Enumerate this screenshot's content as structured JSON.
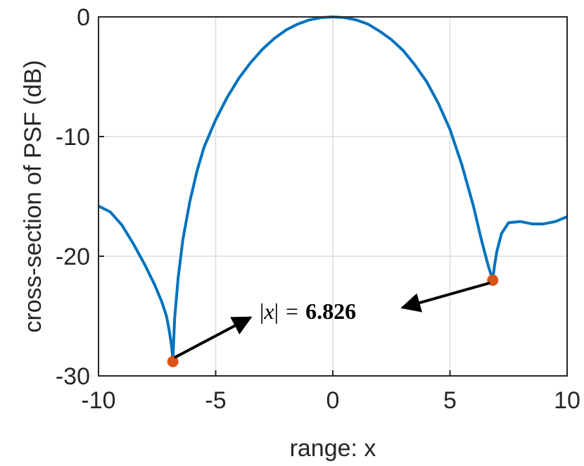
{
  "chart_data": {
    "type": "line",
    "title": "",
    "xlabel": "range: x",
    "ylabel": "cross-section of PSF (dB)",
    "xlim": [
      -10,
      10
    ],
    "ylim": [
      -30,
      0
    ],
    "grid": true,
    "x_ticks": [
      -10,
      -5,
      0,
      5,
      10
    ],
    "x_tick_labels": [
      "-10",
      "-5",
      "0",
      "5",
      "10"
    ],
    "y_ticks": [
      0,
      -10,
      -20,
      -30
    ],
    "y_tick_labels": [
      "0",
      "-10",
      "-20",
      "-30"
    ],
    "colors": {
      "line": "#0072BD",
      "marker": "#D95319",
      "arrow": "#000000",
      "grid": "#dcdcdc",
      "axis": "#262626"
    },
    "series": [
      {
        "x": [
          -10,
          -9.5,
          -9,
          -8.5,
          -8,
          -7.6,
          -7.3,
          -7.1,
          -7.0,
          -6.9,
          -6.85,
          -6.826,
          -6.8,
          -6.75,
          -6.6,
          -6.4,
          -6.1,
          -5.8,
          -5.5,
          -5,
          -4.5,
          -4,
          -3.5,
          -3,
          -2.5,
          -2,
          -1.5,
          -1,
          -0.5,
          0,
          0.5,
          1,
          1.5,
          2,
          2.5,
          3,
          3.5,
          4,
          4.5,
          5,
          5.5,
          6,
          6.3,
          6.5,
          6.65,
          6.75,
          6.8,
          6.826,
          6.85,
          6.9,
          7.0,
          7.2,
          7.5,
          8.0,
          8.5,
          9.0,
          9.5,
          10
        ],
        "y": [
          -15.8,
          -16.3,
          -17.4,
          -19.0,
          -20.8,
          -22.4,
          -23.8,
          -25.0,
          -26.0,
          -27.2,
          -28.1,
          -28.8,
          -27.4,
          -25.2,
          -21.8,
          -18.6,
          -15.4,
          -12.9,
          -10.9,
          -8.6,
          -6.7,
          -5.1,
          -3.8,
          -2.7,
          -1.8,
          -1.1,
          -0.6,
          -0.25,
          -0.06,
          0,
          -0.06,
          -0.25,
          -0.6,
          -1.2,
          -1.9,
          -2.8,
          -4.0,
          -5.4,
          -7.2,
          -9.4,
          -12.3,
          -15.8,
          -18.3,
          -19.8,
          -20.9,
          -21.5,
          -21.8,
          -22.0,
          -21.6,
          -20.8,
          -19.6,
          -18.1,
          -17.2,
          -17.1,
          -17.3,
          -17.3,
          -17.1,
          -16.7
        ]
      }
    ],
    "markers": [
      {
        "x": -6.826,
        "y": -28.8
      },
      {
        "x": 6.826,
        "y": -22.0
      }
    ],
    "annotation": {
      "text": "|x| = 6.826",
      "left_bar": "|",
      "variable": "x",
      "right_bar": "|",
      "equals": "=",
      "value": "6.826"
    }
  }
}
